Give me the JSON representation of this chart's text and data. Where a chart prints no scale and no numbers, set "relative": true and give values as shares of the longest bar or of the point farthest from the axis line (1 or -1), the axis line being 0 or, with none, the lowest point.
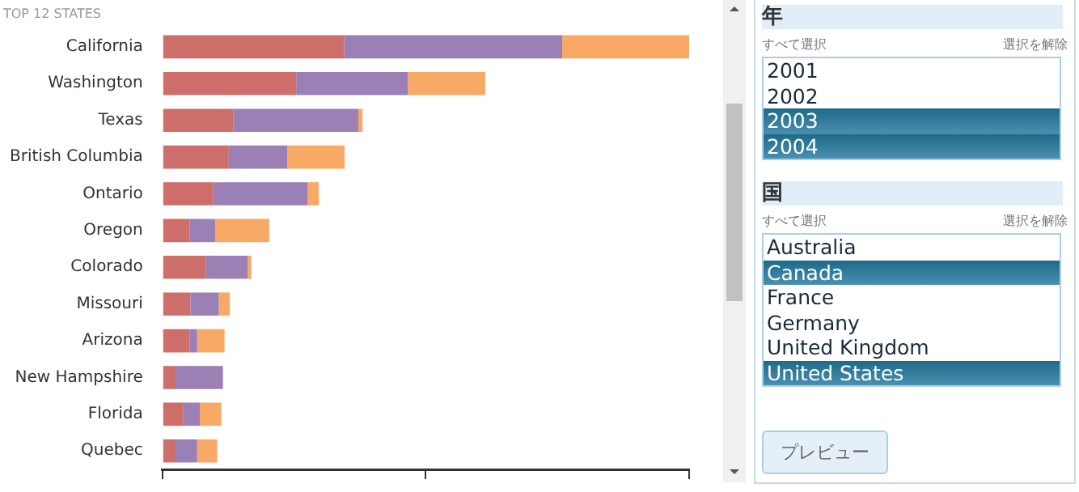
{
  "chart_data": {
    "type": "bar",
    "title": "TOP 12 STATES",
    "orientation": "horizontal",
    "stacked": true,
    "relative": true,
    "categories": [
      "California",
      "Washington",
      "Texas",
      "British Columbia",
      "Ontario",
      "Oregon",
      "Colorado",
      "Missouri",
      "Arizona",
      "New Hampshire",
      "Florida",
      "Quebec"
    ],
    "series": [
      {
        "color": "#cd6e6a",
        "values": [
          0.345,
          0.254,
          0.135,
          0.126,
          0.096,
          0.052,
          0.083,
          0.053,
          0.052,
          0.025,
          0.04,
          0.025
        ]
      },
      {
        "color": "#9a80b5",
        "values": [
          0.414,
          0.212,
          0.237,
          0.111,
          0.18,
          0.048,
          0.079,
          0.054,
          0.014,
          0.09,
          0.031,
          0.041
        ]
      },
      {
        "color": "#f8a966",
        "values": [
          0.241,
          0.147,
          0.008,
          0.109,
          0.021,
          0.103,
          0.007,
          0.021,
          0.052,
          0,
          0.041,
          0.038
        ]
      }
    ],
    "annotations": [
      "年",
      "すべて選択",
      "選択を解除",
      "2001",
      "2002",
      "2003",
      "2004",
      "国",
      "すべて選択",
      "選択を解除",
      "Australia",
      "Canada",
      "France",
      "Germany",
      "United Kingdom",
      "United States",
      "プレビュー"
    ]
  }
}
